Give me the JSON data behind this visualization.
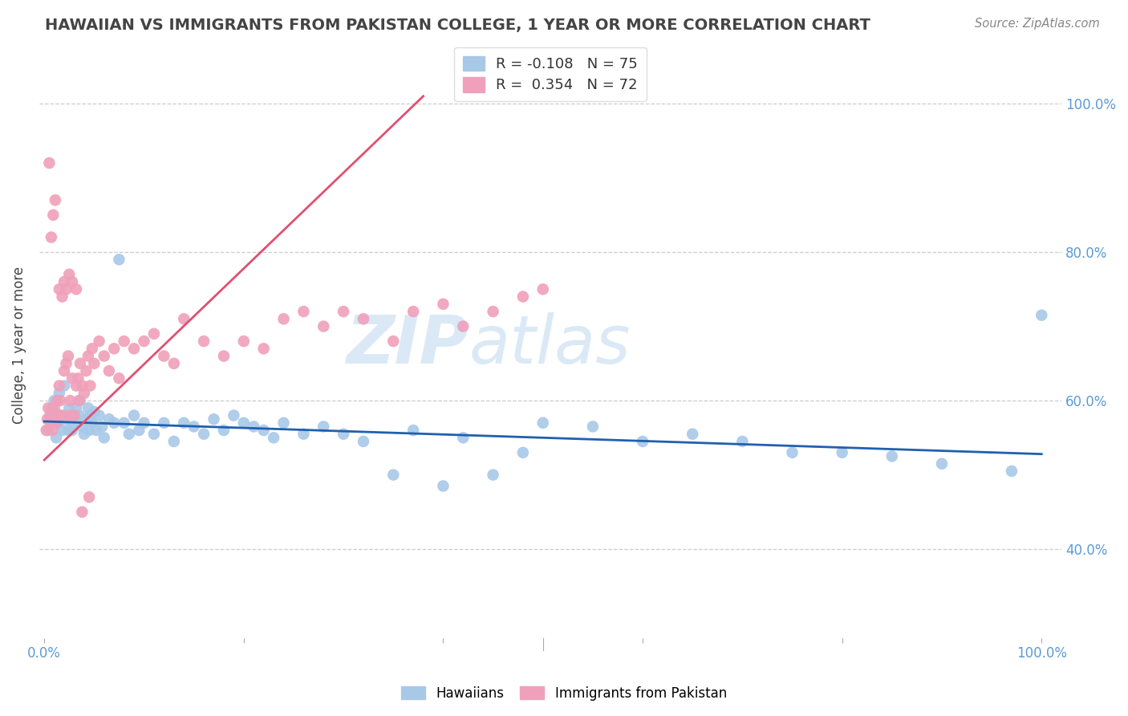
{
  "title": "HAWAIIAN VS IMMIGRANTS FROM PAKISTAN COLLEGE, 1 YEAR OR MORE CORRELATION CHART",
  "source_text": "Source: ZipAtlas.com",
  "ylabel": "College, 1 year or more",
  "watermark": "ZIPatlas",
  "legend_r_blue": "-0.108",
  "legend_n_blue": "75",
  "legend_r_pink": "0.354",
  "legend_n_pink": "72",
  "blue_color": "#A8C8E8",
  "pink_color": "#F0A0BA",
  "blue_line_color": "#2060B0",
  "pink_line_color": "#E05070",
  "grid_color": "#CCCCCC",
  "background_color": "#FFFFFF",
  "title_color": "#444444",
  "tick_color": "#5B9BD5",
  "blue_line_x": [
    0.0,
    1.0
  ],
  "blue_line_y": [
    0.572,
    0.528
  ],
  "pink_line_x": [
    0.0,
    0.38
  ],
  "pink_line_y": [
    0.52,
    1.01
  ],
  "ylim_low": 0.28,
  "ylim_high": 1.07,
  "xlim_low": -0.005,
  "xlim_high": 1.02,
  "ytick_vals": [
    0.4,
    0.6,
    0.8,
    1.0
  ],
  "ytick_labels": [
    "40.0%",
    "60.0%",
    "80.0%",
    "100.0%"
  ],
  "xtick_vals": [
    0.0,
    0.2,
    0.4,
    0.6,
    0.8,
    1.0
  ],
  "xtick_labels": [
    "0.0%",
    "",
    "",
    "",
    "",
    "100.0%"
  ],
  "hawaiians_x": [
    0.004,
    0.006,
    0.008,
    0.01,
    0.012,
    0.014,
    0.015,
    0.016,
    0.018,
    0.02,
    0.022,
    0.024,
    0.025,
    0.026,
    0.028,
    0.03,
    0.032,
    0.034,
    0.035,
    0.036,
    0.038,
    0.04,
    0.042,
    0.044,
    0.045,
    0.046,
    0.048,
    0.05,
    0.052,
    0.055,
    0.058,
    0.06,
    0.065,
    0.07,
    0.075,
    0.08,
    0.085,
    0.09,
    0.095,
    0.1,
    0.11,
    0.12,
    0.13,
    0.14,
    0.15,
    0.16,
    0.17,
    0.18,
    0.19,
    0.2,
    0.21,
    0.22,
    0.23,
    0.24,
    0.26,
    0.28,
    0.3,
    0.32,
    0.35,
    0.37,
    0.4,
    0.42,
    0.45,
    0.48,
    0.5,
    0.55,
    0.6,
    0.65,
    0.7,
    0.75,
    0.8,
    0.85,
    0.9,
    0.97,
    1.0
  ],
  "hawaiians_y": [
    0.56,
    0.58,
    0.59,
    0.6,
    0.55,
    0.57,
    0.61,
    0.58,
    0.56,
    0.62,
    0.575,
    0.56,
    0.59,
    0.575,
    0.56,
    0.58,
    0.59,
    0.57,
    0.58,
    0.6,
    0.565,
    0.555,
    0.575,
    0.59,
    0.56,
    0.58,
    0.57,
    0.585,
    0.56,
    0.58,
    0.565,
    0.55,
    0.575,
    0.57,
    0.79,
    0.57,
    0.555,
    0.58,
    0.56,
    0.57,
    0.555,
    0.57,
    0.545,
    0.57,
    0.565,
    0.555,
    0.575,
    0.56,
    0.58,
    0.57,
    0.565,
    0.56,
    0.55,
    0.57,
    0.555,
    0.565,
    0.555,
    0.545,
    0.5,
    0.56,
    0.485,
    0.55,
    0.5,
    0.53,
    0.57,
    0.565,
    0.545,
    0.555,
    0.545,
    0.53,
    0.53,
    0.525,
    0.515,
    0.505,
    0.715
  ],
  "pakistan_x": [
    0.002,
    0.003,
    0.004,
    0.005,
    0.006,
    0.007,
    0.008,
    0.01,
    0.012,
    0.013,
    0.014,
    0.015,
    0.016,
    0.018,
    0.02,
    0.022,
    0.024,
    0.025,
    0.026,
    0.028,
    0.03,
    0.032,
    0.034,
    0.035,
    0.036,
    0.038,
    0.04,
    0.042,
    0.044,
    0.046,
    0.048,
    0.05,
    0.055,
    0.06,
    0.065,
    0.07,
    0.075,
    0.08,
    0.09,
    0.1,
    0.11,
    0.12,
    0.13,
    0.14,
    0.16,
    0.18,
    0.2,
    0.22,
    0.24,
    0.26,
    0.28,
    0.3,
    0.32,
    0.35,
    0.37,
    0.4,
    0.42,
    0.45,
    0.48,
    0.5,
    0.007,
    0.009,
    0.011,
    0.015,
    0.018,
    0.02,
    0.022,
    0.025,
    0.028,
    0.032,
    0.038,
    0.045
  ],
  "pakistan_y": [
    0.56,
    0.575,
    0.59,
    0.92,
    0.58,
    0.57,
    0.56,
    0.59,
    0.57,
    0.6,
    0.58,
    0.62,
    0.6,
    0.58,
    0.64,
    0.65,
    0.66,
    0.58,
    0.6,
    0.63,
    0.58,
    0.62,
    0.63,
    0.6,
    0.65,
    0.62,
    0.61,
    0.64,
    0.66,
    0.62,
    0.67,
    0.65,
    0.68,
    0.66,
    0.64,
    0.67,
    0.63,
    0.68,
    0.67,
    0.68,
    0.69,
    0.66,
    0.65,
    0.71,
    0.68,
    0.66,
    0.68,
    0.67,
    0.71,
    0.72,
    0.7,
    0.72,
    0.71,
    0.68,
    0.72,
    0.73,
    0.7,
    0.72,
    0.74,
    0.75,
    0.82,
    0.85,
    0.87,
    0.75,
    0.74,
    0.76,
    0.75,
    0.77,
    0.76,
    0.75,
    0.45,
    0.47
  ]
}
